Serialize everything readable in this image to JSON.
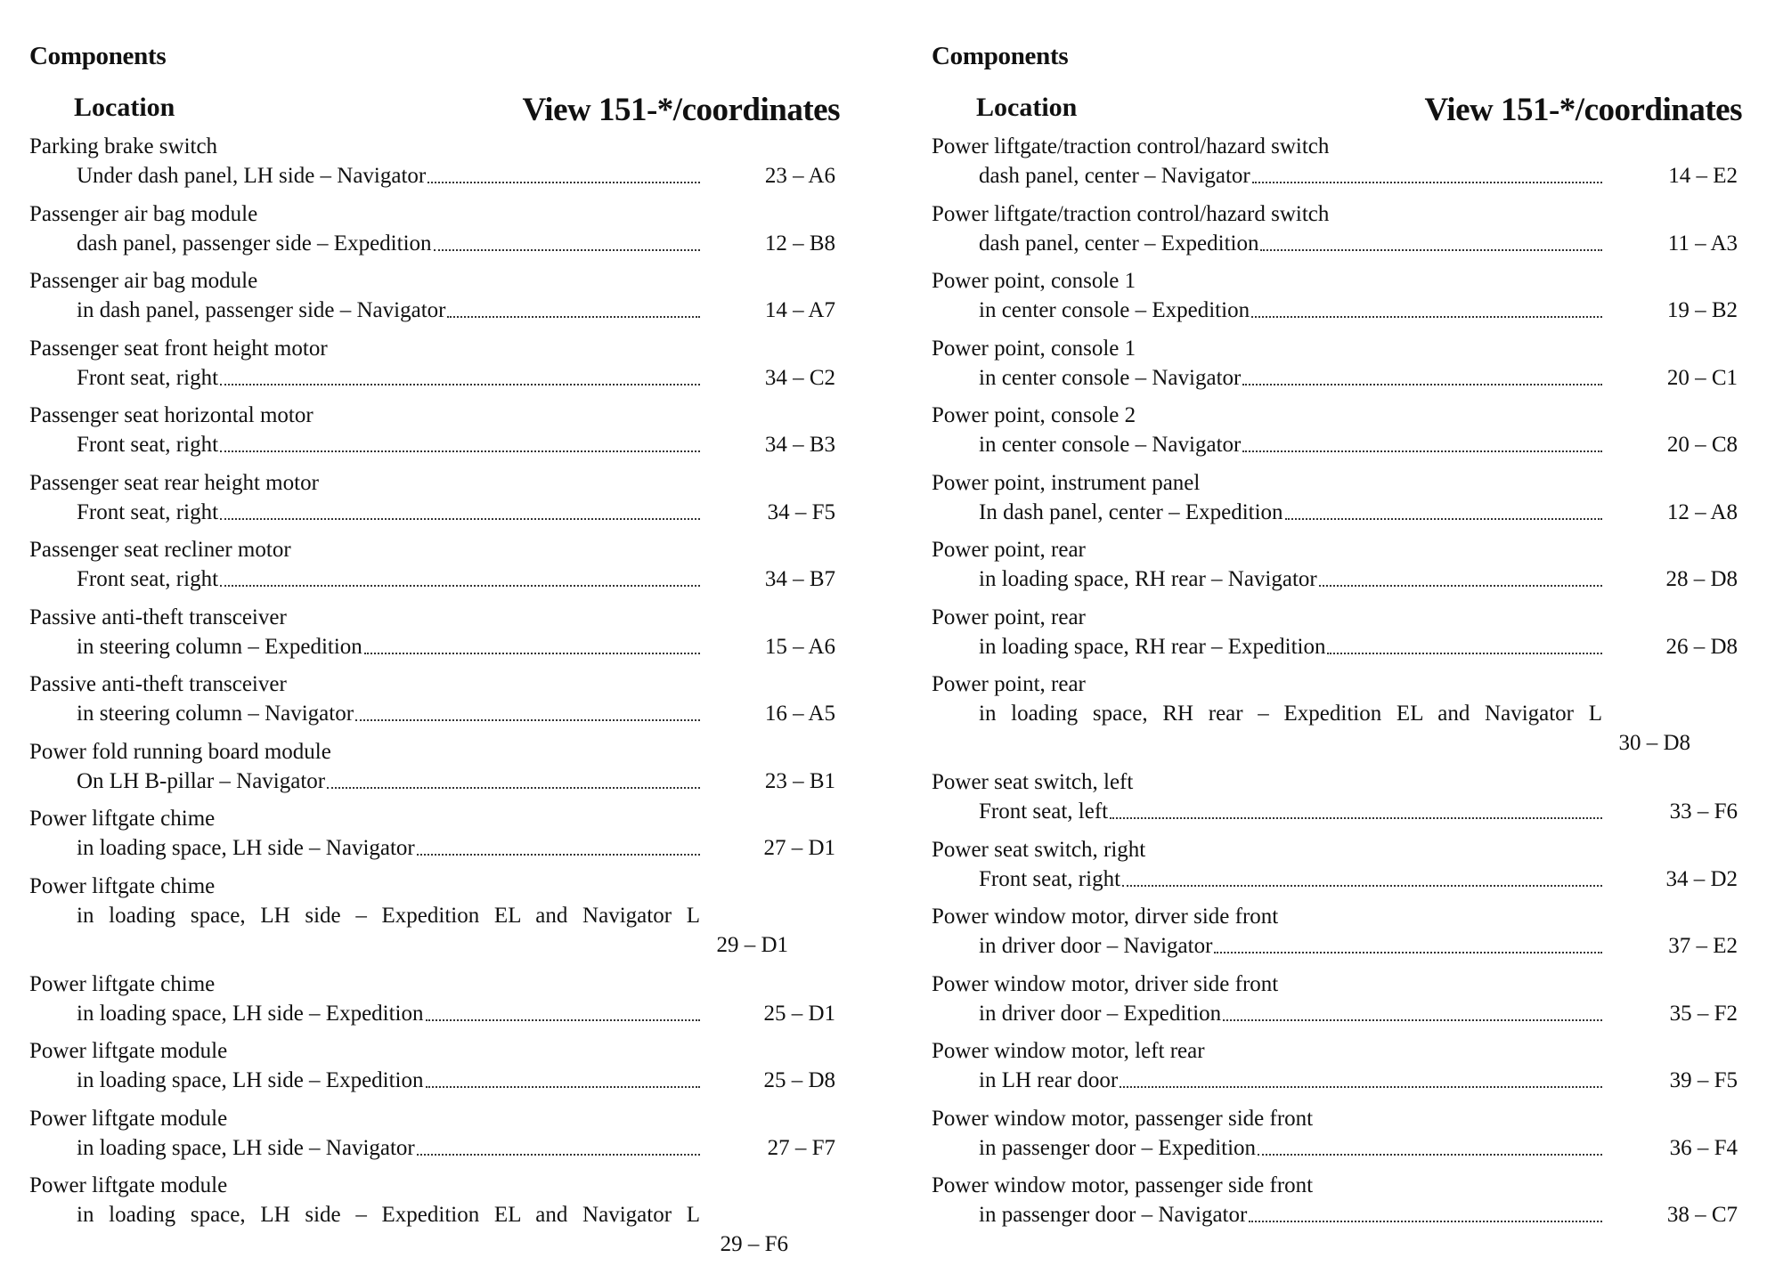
{
  "pages": [
    {
      "title": "Components",
      "col_location": "Location",
      "col_view": "View 151-*/coordinates",
      "entries": [
        {
          "name": "Parking brake switch",
          "location": "Under dash panel, LH side – Navigator",
          "code": "23 – A6"
        },
        {
          "name": "Passenger air bag module",
          "location": "dash panel, passenger side – Expedition",
          "code": "12 – B8"
        },
        {
          "name": "Passenger air bag module",
          "location": "in dash panel, passenger side – Navigator",
          "code": "14 – A7"
        },
        {
          "name": "Passenger seat front height motor",
          "location": "Front seat, right",
          "code": "34 – C2"
        },
        {
          "name": "Passenger seat horizontal motor",
          "location": "Front seat, right",
          "code": "34 – B3"
        },
        {
          "name": "Passenger seat rear height motor",
          "location": "Front seat, right",
          "code": "34 – F5"
        },
        {
          "name": "Passenger seat recliner motor",
          "location": "Front seat, right",
          "code": "34 – B7"
        },
        {
          "name": "Passive anti-theft transceiver",
          "location": "in steering column – Expedition",
          "code": "15 – A6"
        },
        {
          "name": "Passive anti-theft transceiver",
          "location": "in steering column – Navigator",
          "code": "16 – A5"
        },
        {
          "name": "Power fold running board module",
          "location": "On LH B-pillar – Navigator",
          "code": "23 – B1"
        },
        {
          "name": "Power liftgate chime",
          "location": "in loading space, LH side – Navigator",
          "code": "27 – D1"
        },
        {
          "name": "Power liftgate chime",
          "location": "in loading space, LH side – Expedition EL and Navigator L",
          "code": "29 – D1",
          "wrapped": true
        },
        {
          "name": "Power liftgate chime",
          "location": "in loading space, LH side – Expedition",
          "code": "25 – D1"
        },
        {
          "name": "Power liftgate module",
          "location": "in loading space, LH side – Expedition",
          "code": "25 – D8"
        },
        {
          "name": "Power liftgate module",
          "location": "in loading space, LH side – Navigator",
          "code": "27 – F7"
        },
        {
          "name": "Power liftgate module",
          "location": "in loading space, LH side – Expedition EL and Navigator L",
          "code": "29 – F6",
          "wrapped": true
        }
      ]
    },
    {
      "title": "Components",
      "col_location": "Location",
      "col_view": "View 151-*/coordinates",
      "entries": [
        {
          "name": "Power liftgate/traction control/hazard switch",
          "location": "dash panel, center – Navigator",
          "code": "14 – E2"
        },
        {
          "name": "Power liftgate/traction control/hazard switch",
          "location": "dash panel, center – Expedition",
          "code": "11 – A3"
        },
        {
          "name": "Power point, console 1",
          "location": "in center console – Expedition",
          "code": "19 – B2"
        },
        {
          "name": "Power point, console 1",
          "location": "in center console – Navigator",
          "code": "20 – C1"
        },
        {
          "name": "Power point, console 2",
          "location": "in center console – Navigator",
          "code": "20 – C8"
        },
        {
          "name": "Power point, instrument panel",
          "location": "In dash panel, center – Expedition",
          "code": "12 – A8"
        },
        {
          "name": "Power point, rear",
          "location": "in loading space, RH rear – Navigator",
          "code": "28 – D8"
        },
        {
          "name": "Power point, rear",
          "location": "in loading space, RH rear – Expedition",
          "code": "26 – D8"
        },
        {
          "name": "Power point, rear",
          "location": "in loading space, RH rear – Expedition EL and Navigator L",
          "code": "30 – D8",
          "wrapped": true
        },
        {
          "name": "Power seat switch, left",
          "location": "Front seat, left",
          "code": "33 – F6"
        },
        {
          "name": "Power seat switch, right",
          "location": "Front seat, right",
          "code": "34 – D2"
        },
        {
          "name": "Power window motor, dirver side front",
          "location": "in driver door – Navigator",
          "code": "37 – E2"
        },
        {
          "name": "Power window motor, driver side front",
          "location": "in driver door – Expedition",
          "code": "35 – F2"
        },
        {
          "name": "Power window motor, left rear",
          "location": "in LH rear door",
          "code": "39 – F5"
        },
        {
          "name": "Power window motor, passenger side front",
          "location": "in passenger door – Expedition",
          "code": "36 – F4"
        },
        {
          "name": "Power window motor, passenger side front",
          "location": "in passenger door – Navigator",
          "code": "38 – C7"
        }
      ]
    }
  ]
}
